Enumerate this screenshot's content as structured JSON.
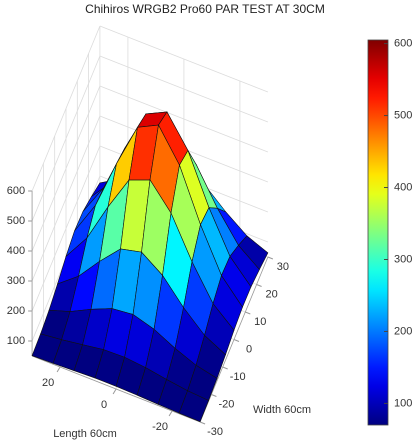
{
  "chart_data": {
    "type": "surface",
    "title": "Chihiros WRGB2 Pro60 PAR TEST AT 30CM",
    "xlabel": "Length 60cm",
    "ylabel": "Width 60cm",
    "x": [
      -30,
      -22.5,
      -15,
      -7.5,
      0,
      7.5,
      15,
      22.5,
      30
    ],
    "y": [
      -30,
      -22.5,
      -15,
      -7.5,
      0,
      7.5,
      15,
      22.5,
      30
    ],
    "z": [
      [
        51,
        52,
        54,
        57,
        59,
        59,
        56,
        53,
        51
      ],
      [
        53,
        58,
        68,
        80,
        87,
        85,
        74,
        63,
        55
      ],
      [
        58,
        74,
        103,
        139,
        161,
        153,
        123,
        88,
        65
      ],
      [
        68,
        105,
        170,
        250,
        300,
        283,
        214,
        137,
        84
      ],
      [
        81,
        142,
        254,
        389,
        472,
        444,
        327,
        196,
        107
      ],
      [
        89,
        167,
        309,
        480,
        586,
        551,
        402,
        236,
        123
      ],
      [
        88,
        162,
        297,
        460,
        561,
        527,
        386,
        227,
        119
      ],
      [
        77,
        130,
        226,
        343,
        416,
        392,
        290,
        177,
        100
      ],
      [
        64,
        93,
        145,
        207,
        246,
        233,
        179,
        118,
        77
      ]
    ],
    "xlim": [
      -30,
      30
    ],
    "ylim": [
      -30,
      30
    ],
    "zlim": [
      50,
      600
    ],
    "xticks": [
      -20,
      0,
      20
    ],
    "yticks": [
      -30,
      -20,
      -10,
      0,
      10,
      20,
      30
    ],
    "zticks": [
      100,
      200,
      300,
      400,
      500,
      600
    ],
    "colormap": "jet",
    "clim": [
      70,
      605
    ],
    "colorbar_ticks": [
      100,
      200,
      300,
      400,
      500,
      600
    ],
    "grid": true
  }
}
